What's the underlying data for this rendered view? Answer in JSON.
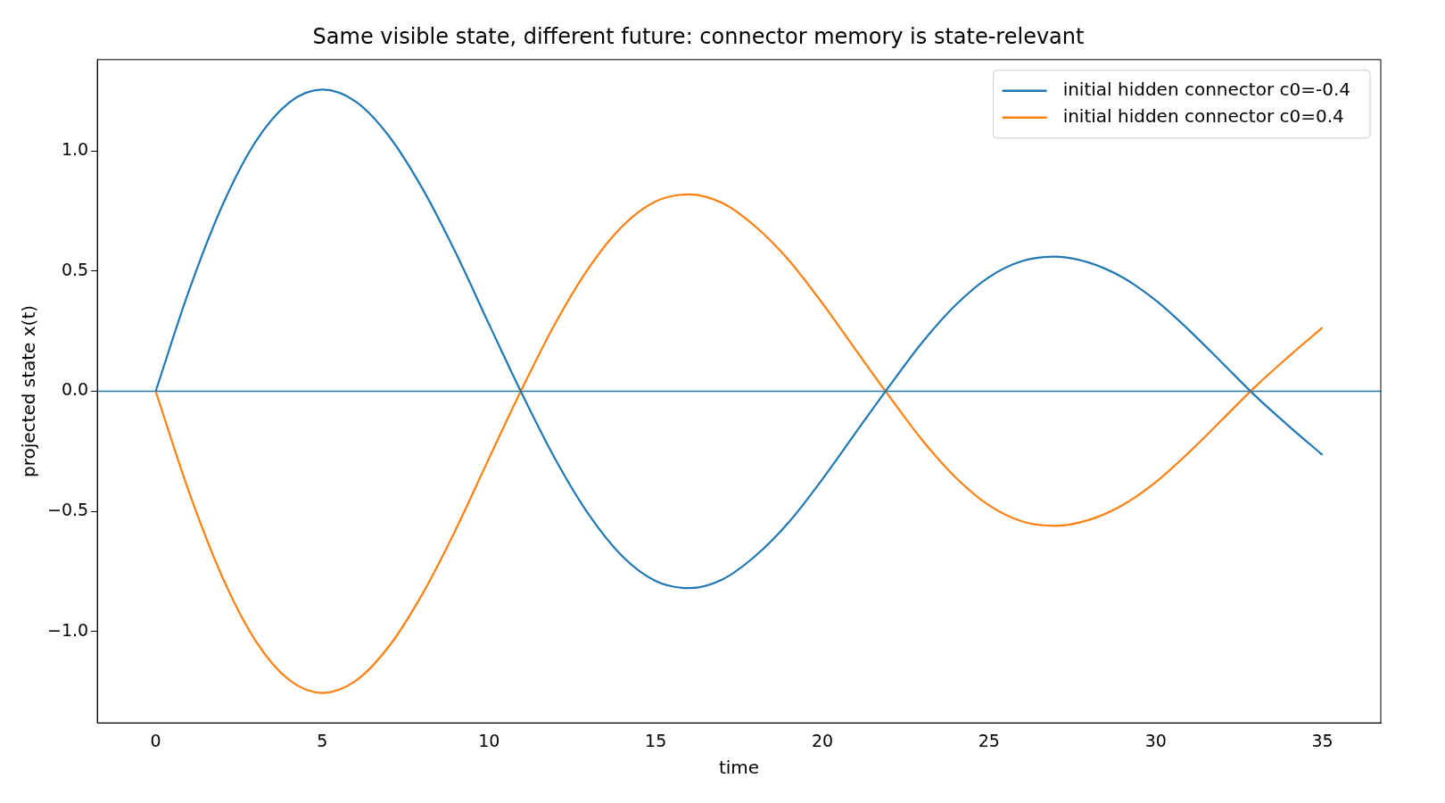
{
  "chart_data": {
    "type": "line",
    "title": "Same visible state, different future: connector memory is state-relevant",
    "xlabel": "time",
    "ylabel": "projected state x(t)",
    "x": [
      0,
      1,
      2,
      3,
      4,
      5,
      6,
      7,
      8,
      9,
      10,
      11,
      12,
      13,
      14,
      15,
      16,
      17,
      18,
      19,
      20,
      21,
      22,
      23,
      24,
      25,
      26,
      27,
      28,
      29,
      30,
      31,
      32,
      33,
      34,
      35
    ],
    "series": [
      {
        "name": "initial hidden connector c0=-0.4",
        "color": "#1f77b4",
        "values": [
          0,
          0.419,
          0.773,
          1.039,
          1.201,
          1.255,
          1.205,
          1.061,
          0.844,
          0.576,
          0.279,
          -0.014,
          -0.286,
          -0.515,
          -0.687,
          -0.79,
          -0.819,
          -0.783,
          -0.684,
          -0.544,
          -0.366,
          -0.172,
          0.02,
          0.204,
          0.359,
          0.475,
          0.542,
          0.56,
          0.535,
          0.474,
          0.378,
          0.254,
          0.117,
          -0.021,
          -0.146,
          -0.265
        ]
      },
      {
        "name": "initial hidden connector c0=0.4",
        "color": "#ff7f0e",
        "values": [
          0,
          -0.419,
          -0.773,
          -1.039,
          -1.201,
          -1.255,
          -1.205,
          -1.061,
          -0.844,
          -0.576,
          -0.279,
          0.014,
          0.286,
          0.515,
          0.687,
          0.79,
          0.819,
          0.783,
          0.684,
          0.544,
          0.366,
          0.172,
          -0.02,
          -0.204,
          -0.359,
          -0.475,
          -0.542,
          -0.56,
          -0.535,
          -0.474,
          -0.378,
          -0.254,
          -0.117,
          0.021,
          0.146,
          0.265
        ]
      }
    ],
    "xlim": [
      -1.75,
      36.75
    ],
    "ylim": [
      -1.38,
      1.38
    ],
    "xticks": [
      0,
      5,
      10,
      15,
      20,
      25,
      30,
      35
    ],
    "yticks": [
      {
        "value": -1,
        "label": "−1.0"
      },
      {
        "value": -0.5,
        "label": "−0.5"
      },
      {
        "value": 0,
        "label": "0.0"
      },
      {
        "value": 0.5,
        "label": "0.5"
      },
      {
        "value": 1,
        "label": "1.0"
      }
    ],
    "ref_lines": [
      {
        "axis": "y",
        "value": 0,
        "color": "#1f77b4"
      }
    ],
    "grid": false,
    "legend": "top right",
    "marker": "none",
    "line_style": "solid"
  }
}
